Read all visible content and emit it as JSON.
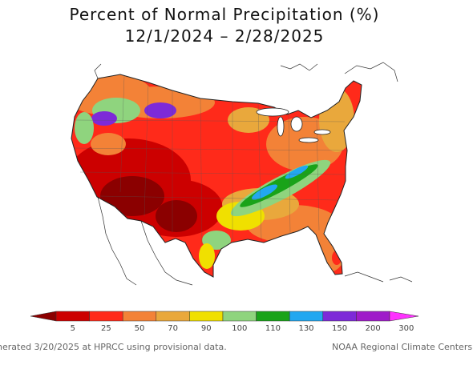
{
  "map": {
    "title_line1": "Percent of Normal Precipitation (%)",
    "title_line2": "12/1/2024 – 2/28/2025"
  },
  "legend": {
    "colors": [
      "#8b0000",
      "#cc0000",
      "#ff2a1a",
      "#f38237",
      "#e9a83c",
      "#f0e000",
      "#8fd47e",
      "#19a319",
      "#22a7f0",
      "#7d2ad8",
      "#9f1cc9",
      "#ff33ff"
    ],
    "labels": [
      "5",
      "25",
      "50",
      "70",
      "90",
      "100",
      "110",
      "130",
      "150",
      "200",
      "300"
    ]
  },
  "footer": {
    "left": "nerated 3/20/2025 at HPRCC using provisional data.",
    "right": "NOAA Regional Climate Centers"
  }
}
